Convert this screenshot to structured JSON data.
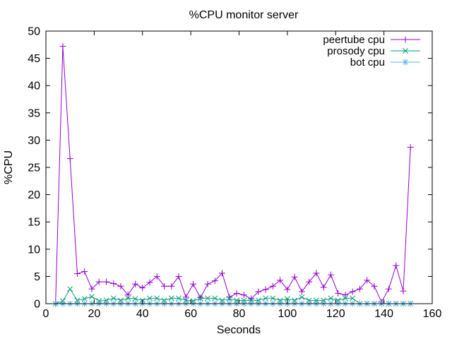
{
  "chart_data": {
    "type": "line",
    "title": "%CPU monitor server",
    "xlabel": "Seconds",
    "ylabel": "%CPU",
    "xlim": [
      0,
      160
    ],
    "ylim": [
      0,
      50
    ],
    "xticks": [
      0,
      20,
      40,
      60,
      80,
      100,
      120,
      140,
      160
    ],
    "yticks": [
      0,
      5,
      10,
      15,
      20,
      25,
      30,
      35,
      40,
      45,
      50
    ],
    "grid": false,
    "legend": "top-right",
    "series": [
      {
        "name": "peertube cpu",
        "color": "#9400d3",
        "marker": "plus",
        "points": [
          [
            4,
            0
          ],
          [
            7,
            47.2
          ],
          [
            10,
            26.6
          ],
          [
            13,
            5.5
          ],
          [
            16,
            5.9
          ],
          [
            19,
            2.7
          ],
          [
            22,
            4
          ],
          [
            25,
            4
          ],
          [
            28,
            3.7
          ],
          [
            31,
            3.2
          ],
          [
            34,
            1.6
          ],
          [
            37,
            3.6
          ],
          [
            40,
            2.9
          ],
          [
            43,
            3.9
          ],
          [
            46,
            5
          ],
          [
            49,
            3.2
          ],
          [
            52,
            3.2
          ],
          [
            55,
            5
          ],
          [
            58,
            1.2
          ],
          [
            61,
            3.6
          ],
          [
            64,
            1.1
          ],
          [
            67,
            3.6
          ],
          [
            70,
            4.2
          ],
          [
            73,
            5.6
          ],
          [
            76,
            1.2
          ],
          [
            79,
            1.9
          ],
          [
            82,
            1.6
          ],
          [
            85,
            0.9
          ],
          [
            88,
            2.2
          ],
          [
            91,
            2.6
          ],
          [
            94,
            3.2
          ],
          [
            97,
            4.3
          ],
          [
            100,
            2.6
          ],
          [
            103,
            4.9
          ],
          [
            106,
            2.2
          ],
          [
            109,
            4
          ],
          [
            112,
            5.6
          ],
          [
            115,
            3
          ],
          [
            118,
            5.3
          ],
          [
            121,
            1.9
          ],
          [
            124,
            1.6
          ],
          [
            127,
            2.2
          ],
          [
            130,
            2.7
          ],
          [
            133,
            4.3
          ],
          [
            136,
            3.2
          ],
          [
            139,
            0.3
          ],
          [
            142,
            2.7
          ],
          [
            145,
            7
          ],
          [
            148,
            2.3
          ],
          [
            151,
            28.7
          ]
        ]
      },
      {
        "name": "prosody cpu",
        "color": "#009e73",
        "marker": "cross",
        "points": [
          [
            4,
            0
          ],
          [
            7,
            0.5
          ],
          [
            10,
            2.7
          ],
          [
            13,
            0.6
          ],
          [
            16,
            0.9
          ],
          [
            19,
            1.3
          ],
          [
            22,
            0.5
          ],
          [
            25,
            0.6
          ],
          [
            28,
            1
          ],
          [
            31,
            0.6
          ],
          [
            34,
            1
          ],
          [
            37,
            0.9
          ],
          [
            40,
            0.6
          ],
          [
            43,
            1
          ],
          [
            46,
            1
          ],
          [
            49,
            0.6
          ],
          [
            52,
            1
          ],
          [
            55,
            1
          ],
          [
            58,
            0.6
          ],
          [
            61,
            0.5
          ],
          [
            64,
            1
          ],
          [
            67,
            1
          ],
          [
            70,
            1
          ],
          [
            73,
            0.6
          ],
          [
            76,
            0.9
          ],
          [
            79,
            0.6
          ],
          [
            82,
            0.6
          ],
          [
            85,
            0.6
          ],
          [
            88,
            0.6
          ],
          [
            91,
            1
          ],
          [
            94,
            1
          ],
          [
            97,
            0.6
          ],
          [
            100,
            0.9
          ],
          [
            103,
            0.6
          ],
          [
            106,
            1.2
          ],
          [
            109,
            0.6
          ],
          [
            112,
            0.6
          ],
          [
            115,
            0.6
          ],
          [
            118,
            1
          ],
          [
            121,
            0.6
          ],
          [
            124,
            1
          ],
          [
            127,
            1
          ],
          [
            130,
            0
          ],
          [
            133,
            0
          ],
          [
            136,
            0
          ],
          [
            139,
            0
          ],
          [
            142,
            0
          ],
          [
            145,
            0
          ],
          [
            148,
            0
          ],
          [
            151,
            0
          ]
        ]
      },
      {
        "name": "bot cpu",
        "color": "#56b4e9",
        "marker": "star",
        "points": [
          [
            4,
            0
          ],
          [
            7,
            0
          ],
          [
            10,
            0
          ],
          [
            13,
            0
          ],
          [
            16,
            0
          ],
          [
            19,
            0
          ],
          [
            22,
            0
          ],
          [
            25,
            0
          ],
          [
            28,
            0
          ],
          [
            31,
            0
          ],
          [
            34,
            0
          ],
          [
            37,
            0
          ],
          [
            40,
            0
          ],
          [
            43,
            0
          ],
          [
            46,
            0
          ],
          [
            49,
            0
          ],
          [
            52,
            0
          ],
          [
            55,
            0
          ],
          [
            58,
            0
          ],
          [
            61,
            0
          ],
          [
            64,
            0
          ],
          [
            67,
            0
          ],
          [
            70,
            0
          ],
          [
            73,
            0
          ],
          [
            76,
            0
          ],
          [
            79,
            0
          ],
          [
            82,
            0
          ],
          [
            85,
            0
          ],
          [
            88,
            0
          ],
          [
            91,
            0
          ],
          [
            94,
            0
          ],
          [
            97,
            0
          ],
          [
            100,
            0
          ],
          [
            103,
            0
          ],
          [
            106,
            0
          ],
          [
            109,
            0
          ],
          [
            112,
            0
          ],
          [
            115,
            0
          ],
          [
            118,
            0
          ],
          [
            121,
            0
          ],
          [
            124,
            0
          ],
          [
            127,
            0
          ],
          [
            130,
            0
          ],
          [
            133,
            0
          ],
          [
            136,
            0
          ],
          [
            139,
            0
          ],
          [
            142,
            0
          ],
          [
            145,
            0
          ],
          [
            148,
            0
          ],
          [
            151,
            0
          ]
        ]
      }
    ]
  }
}
